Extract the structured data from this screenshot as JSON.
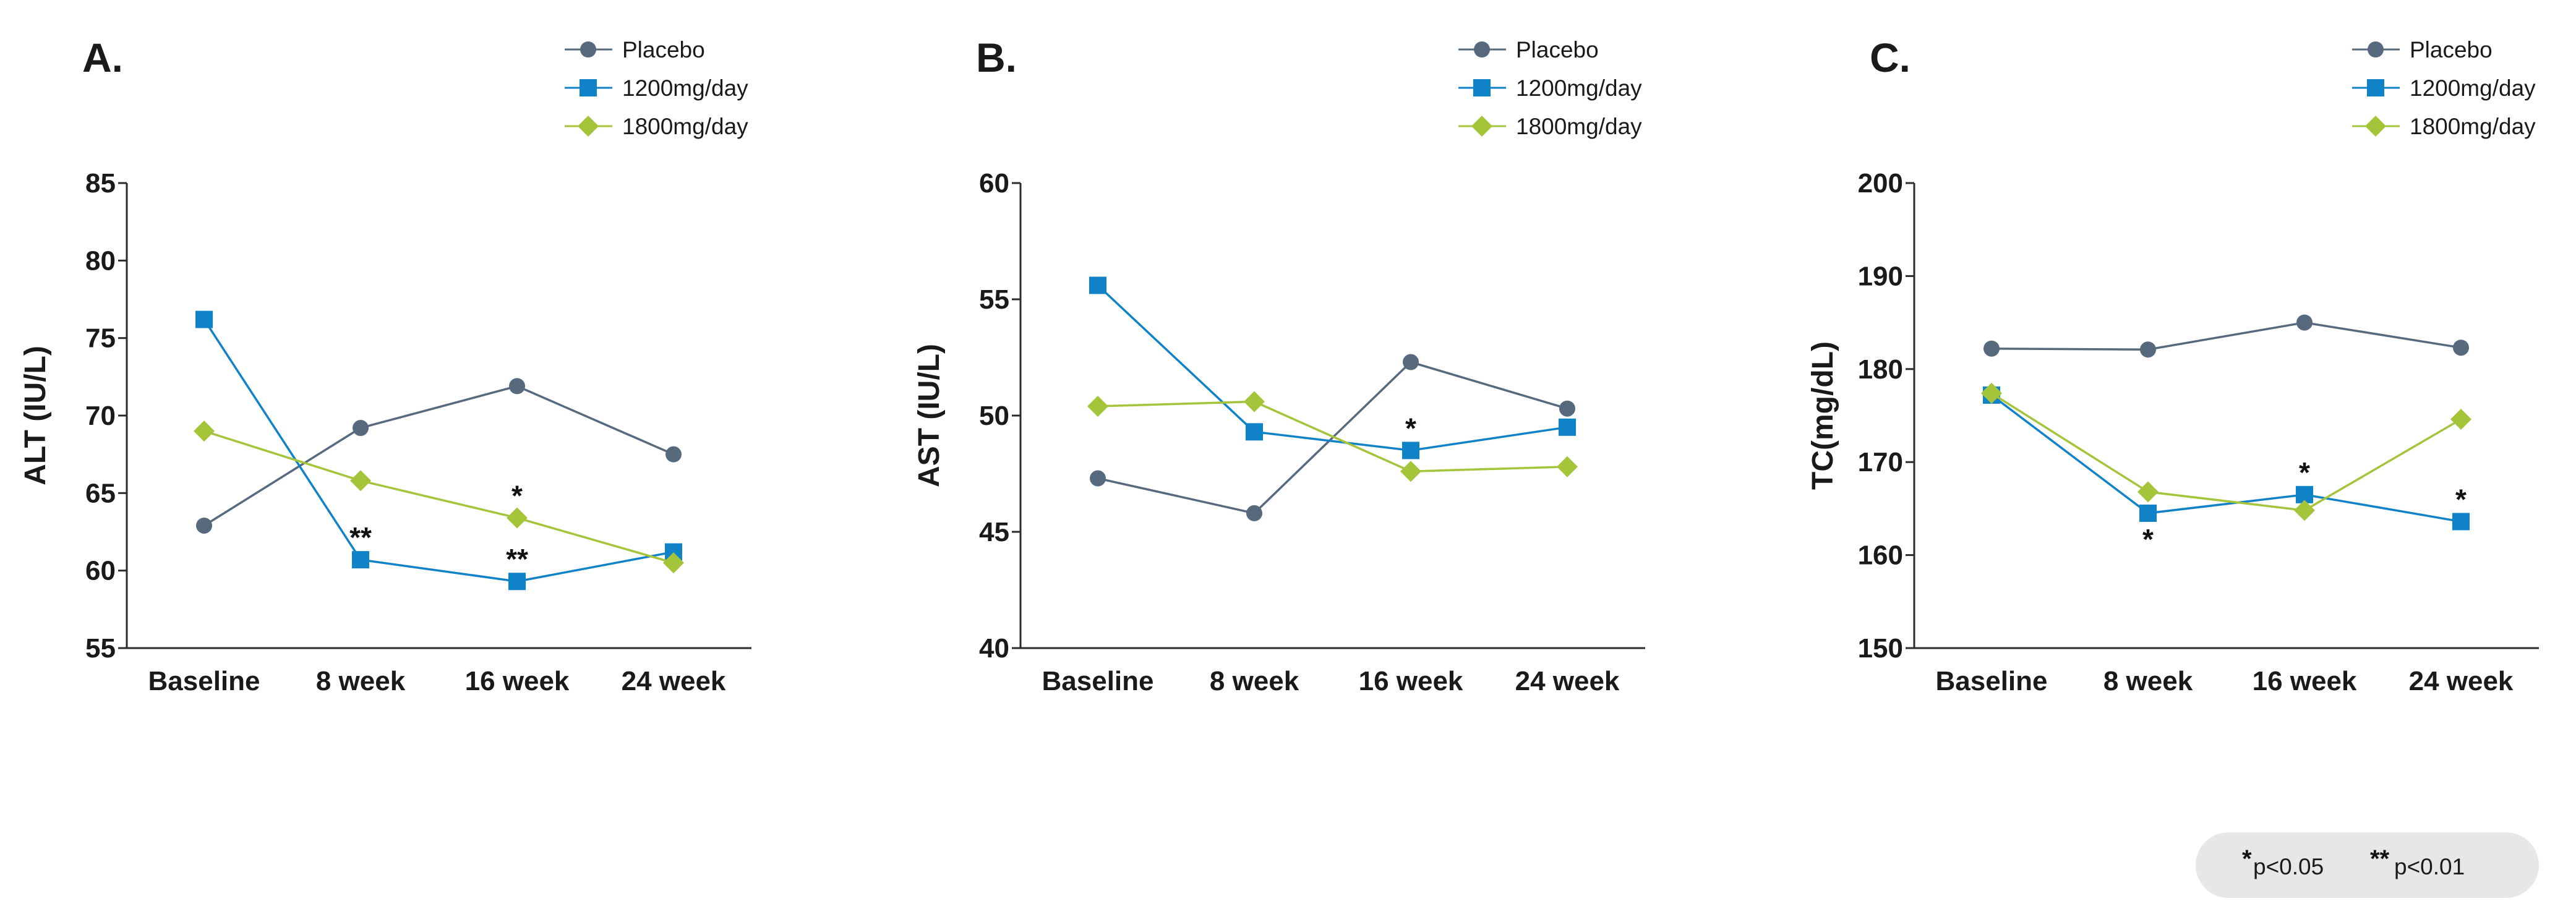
{
  "colors": {
    "placebo": "#56697d",
    "dose1200": "#0f82c8",
    "dose1800": "#a4c43a",
    "axis": "#2b2b2b",
    "key_box": "#e6e7e9"
  },
  "legend": {
    "placebo": "Placebo",
    "dose1200": "1200mg/day",
    "dose1800": "1800mg/day"
  },
  "significance_key": {
    "single_mark": "*",
    "single_text": "p<0.05",
    "double_mark": "**",
    "double_text": "p<0.01"
  },
  "chart_data": [
    {
      "type": "line",
      "panel": "A.",
      "ylabel": "ALT (IU/L)",
      "xlabel": "",
      "categories": [
        "Baseline",
        "8 week",
        "16 week",
        "24 week"
      ],
      "ylim": [
        55,
        85
      ],
      "yticks": [
        55,
        60,
        65,
        70,
        75,
        80,
        85
      ],
      "legend_position": "top-right",
      "series": [
        {
          "key": "placebo",
          "name": "Placebo",
          "marker": "circle",
          "values": [
            62.9,
            69.2,
            71.9,
            67.5
          ]
        },
        {
          "key": "dose1200",
          "name": "1200mg/day",
          "marker": "square",
          "values": [
            76.2,
            60.7,
            59.3,
            61.2
          ]
        },
        {
          "key": "dose1800",
          "name": "1800mg/day",
          "marker": "diamond",
          "values": [
            69.0,
            65.8,
            63.4,
            60.5
          ]
        }
      ],
      "annotations": [
        {
          "text": "**",
          "category": "8 week",
          "series": "dose1200",
          "position": "above"
        },
        {
          "text": "**",
          "category": "16 week",
          "series": "dose1200",
          "position": "above"
        },
        {
          "text": "*",
          "category": "16 week",
          "series": "dose1800",
          "position": "above"
        }
      ]
    },
    {
      "type": "line",
      "panel": "B.",
      "ylabel": "AST (IU/L)",
      "xlabel": "",
      "categories": [
        "Baseline",
        "8 week",
        "16 week",
        "24 week"
      ],
      "ylim": [
        40,
        60
      ],
      "yticks": [
        40,
        45,
        50,
        55,
        60
      ],
      "legend_position": "top-right",
      "series": [
        {
          "key": "placebo",
          "name": "Placebo",
          "marker": "circle",
          "values": [
            47.3,
            45.8,
            52.3,
            50.3
          ]
        },
        {
          "key": "dose1200",
          "name": "1200mg/day",
          "marker": "square",
          "values": [
            55.6,
            49.3,
            48.5,
            49.5
          ]
        },
        {
          "key": "dose1800",
          "name": "1800mg/day",
          "marker": "diamond",
          "values": [
            50.4,
            50.6,
            47.6,
            47.8
          ]
        }
      ],
      "annotations": [
        {
          "text": "*",
          "category": "16 week",
          "series": "dose1200",
          "position": "above"
        }
      ]
    },
    {
      "type": "line",
      "panel": "C.",
      "ylabel": "TC(mg/dL)",
      "xlabel": "",
      "categories": [
        "Baseline",
        "8 week",
        "16 week",
        "24 week"
      ],
      "ylim": [
        150,
        200
      ],
      "yticks": [
        150,
        160,
        170,
        180,
        190,
        200
      ],
      "legend_position": "top-right",
      "series": [
        {
          "key": "placebo",
          "name": "Placebo",
          "marker": "circle",
          "values": [
            182.2,
            182.1,
            185.0,
            182.3
          ]
        },
        {
          "key": "dose1200",
          "name": "1200mg/day",
          "marker": "square",
          "values": [
            177.2,
            164.5,
            166.5,
            163.6
          ]
        },
        {
          "key": "dose1800",
          "name": "1800mg/day",
          "marker": "diamond",
          "values": [
            177.4,
            166.8,
            164.8,
            174.6
          ]
        }
      ],
      "annotations": [
        {
          "text": "*",
          "category": "8 week",
          "series": "dose1200",
          "position": "below"
        },
        {
          "text": "*",
          "category": "16 week",
          "series": "dose1200",
          "position": "above"
        },
        {
          "text": "*",
          "category": "24 week",
          "series": "dose1200",
          "position": "above"
        }
      ]
    }
  ]
}
